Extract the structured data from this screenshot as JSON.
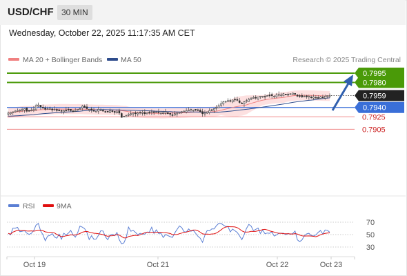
{
  "header": {
    "symbol": "USD/CHF",
    "timeframe": "30 MIN",
    "datetime": "Wednesday, October 22, 2025 11:17:35 AM CET"
  },
  "legend": {
    "ma20": {
      "label": "MA 20 + Bollinger Bands",
      "color": "#f08080"
    },
    "ma50": {
      "label": "MA 50",
      "color": "#2e4c8c"
    },
    "copyright": "Research © 2025 Trading Central"
  },
  "rsi_legend": {
    "rsi": {
      "label": "RSI",
      "color": "#5b7fd4"
    },
    "ma9": {
      "label": "9MA",
      "color": "#e01010"
    }
  },
  "levels": [
    {
      "value": "0.7995",
      "kind": "target",
      "color": "#4a9a08"
    },
    {
      "value": "0.7980",
      "kind": "target",
      "color": "#4a9a08"
    },
    {
      "value": "0.7959",
      "kind": "current",
      "color": "#222222"
    },
    {
      "value": "0.7940",
      "kind": "pivot",
      "color": "#3a6fd8"
    },
    {
      "value": "0.7925",
      "kind": "support",
      "color": "#cc2222"
    },
    {
      "value": "0.7905",
      "kind": "support",
      "color": "#cc2222"
    }
  ],
  "rsi_ticks": [
    "70",
    "50",
    "30"
  ],
  "x_labels": [
    "Oct 19",
    "Oct 21",
    "Oct 22",
    "Oct 23"
  ],
  "chart_data": {
    "type": "candlestick",
    "title": "USD/CHF 30 MIN",
    "yrange": [
      0.787,
      0.801
    ],
    "current_price": 0.7959,
    "closes": [
      0.7931,
      0.7932,
      0.7933,
      0.7934,
      0.7935,
      0.7936,
      0.7937,
      0.7938,
      0.7934,
      0.7935,
      0.7936,
      0.7937,
      0.7943,
      0.7944,
      0.7941,
      0.794,
      0.7937,
      0.7938,
      0.7939,
      0.7936,
      0.7937,
      0.7935,
      0.7936,
      0.7934,
      0.7935,
      0.7936,
      0.7937,
      0.7935,
      0.7934,
      0.7935,
      0.7937,
      0.7938,
      0.7942,
      0.794,
      0.7938,
      0.7937,
      0.7936,
      0.7935,
      0.7934,
      0.7937,
      0.7936,
      0.7934,
      0.7933,
      0.7933,
      0.7935,
      0.7934,
      0.7932,
      0.7933,
      0.7931,
      0.7924,
      0.7926,
      0.7927,
      0.7929,
      0.793,
      0.7931,
      0.793,
      0.7931,
      0.7931,
      0.7932,
      0.793,
      0.7931,
      0.7932,
      0.7933,
      0.7932,
      0.7933,
      0.7932,
      0.7931,
      0.7932,
      0.7933,
      0.793,
      0.7929,
      0.7928,
      0.793,
      0.7931,
      0.7932,
      0.7933,
      0.7934,
      0.7935,
      0.7936,
      0.7937,
      0.7936,
      0.7937,
      0.7935,
      0.7933,
      0.793,
      0.7931,
      0.7933,
      0.7935,
      0.7936,
      0.7938,
      0.794,
      0.7943,
      0.7946,
      0.7949,
      0.795,
      0.7951,
      0.795,
      0.7952,
      0.7953,
      0.7952,
      0.7948,
      0.7946,
      0.7949,
      0.7951,
      0.7953,
      0.7955,
      0.7956,
      0.7955,
      0.7957,
      0.7958,
      0.7958,
      0.7957,
      0.7959,
      0.796,
      0.7959,
      0.7958,
      0.796,
      0.7961,
      0.796,
      0.7962,
      0.7961,
      0.796,
      0.7962,
      0.7963,
      0.7961,
      0.7958,
      0.7958,
      0.7957,
      0.7958,
      0.7957,
      0.7958,
      0.7956,
      0.7957,
      0.7956,
      0.7955,
      0.7957,
      0.7956,
      0.7958,
      0.7959,
      0.7959
    ]
  }
}
